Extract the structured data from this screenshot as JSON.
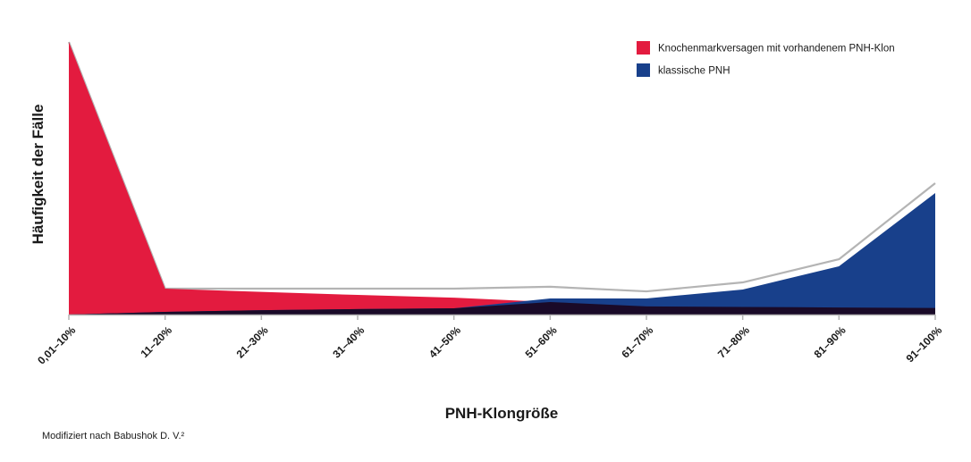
{
  "chart_data": {
    "type": "area",
    "categories": [
      "0,01–10%",
      "11–20%",
      "21–30%",
      "31–40%",
      "41–50%",
      "51–60%",
      "61–70%",
      "71–80%",
      "81–90%",
      "91–100%"
    ],
    "xlabel": "PNH-Klongröße",
    "ylabel": "Häufigkeit der Fälle",
    "ylim": [
      0,
      100
    ],
    "grid": false,
    "legend_position": "top-right",
    "series": [
      {
        "name": "Knochenmarkversagen mit vorhandenem PNH-Klon",
        "color": "#e31b3f",
        "values": [
          100,
          9.5,
          8.3,
          7.2,
          6.2,
          4.6,
          3.0,
          2.8,
          2.6,
          2.4
        ]
      },
      {
        "name": "klassische PNH",
        "color": "#18408b",
        "values": [
          0,
          1.0,
          1.6,
          2.0,
          2.3,
          5.9,
          5.9,
          9.2,
          17.7,
          44.6
        ]
      }
    ],
    "overlap_color": "#1a0a28",
    "total_line": {
      "color": "#b4b4b4",
      "values": [
        100,
        9.5,
        9.5,
        9.5,
        9.5,
        10.2,
        8.5,
        11.8,
        20.3,
        48.2
      ]
    }
  },
  "footer": {
    "source": "Modifiziert nach Babushok D. V.²"
  }
}
